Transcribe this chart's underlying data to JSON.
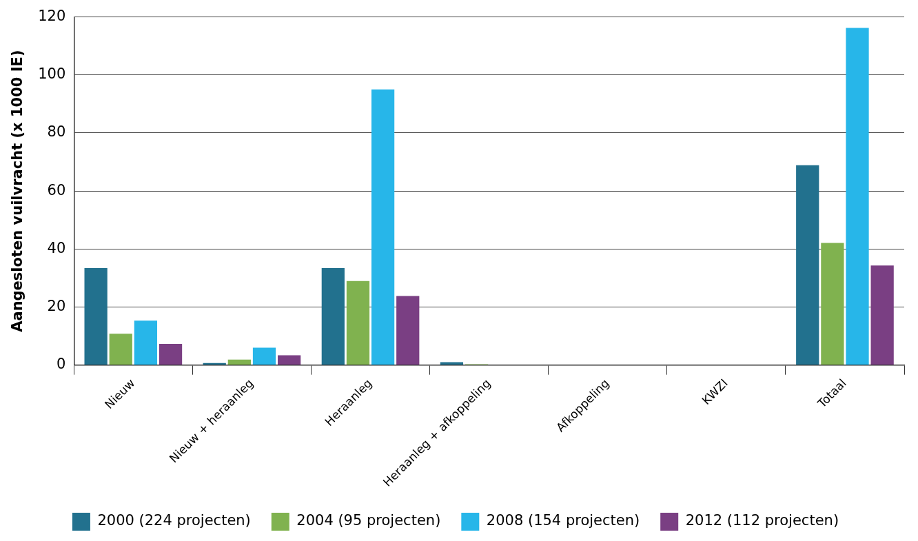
{
  "chart_data": {
    "type": "bar",
    "ylabel": "Aangesloten vuilvracht (x 1000 IE)",
    "categories": [
      "Nieuw",
      "Nieuw + heraanleg",
      "Heraanleg",
      "Heraanleg + afkoppeling",
      "Afkoppeling",
      "KWZI",
      "Totaal"
    ],
    "series": [
      {
        "name": "2000 (224 projecten)",
        "color": "#22718e",
        "values": [
          33.4,
          0.7,
          33.4,
          1.0,
          0.1,
          null,
          68.9
        ]
      },
      {
        "name": "2004 (95 projecten)",
        "color": "#80b24f",
        "values": [
          10.8,
          1.9,
          29.0,
          0.3,
          0.1,
          null,
          42.1
        ]
      },
      {
        "name": "2008 (154 projecten)",
        "color": "#27b6e9",
        "values": [
          15.3,
          6.0,
          95.0,
          null,
          null,
          null,
          116.2
        ]
      },
      {
        "name": "2012 (112 projecten)",
        "color": "#7a3f83",
        "values": [
          7.3,
          3.4,
          23.8,
          0.1,
          0.1,
          0.1,
          34.3
        ]
      }
    ],
    "ylim": [
      0,
      120
    ],
    "yticks": [
      0,
      20,
      40,
      60,
      80,
      100,
      120
    ],
    "grid": "y",
    "legend": "bottom"
  }
}
